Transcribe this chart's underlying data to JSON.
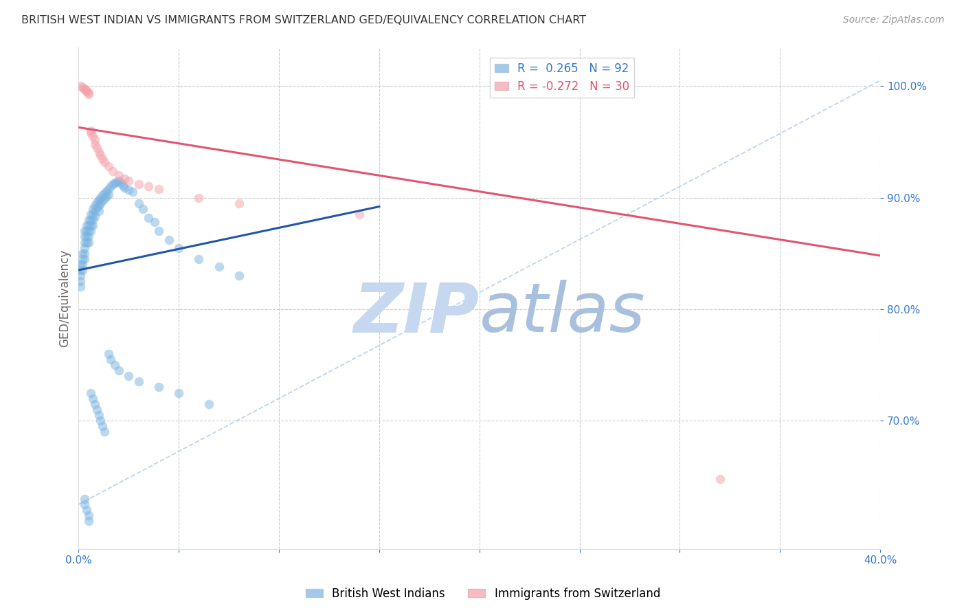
{
  "title": "BRITISH WEST INDIAN VS IMMIGRANTS FROM SWITZERLAND GED/EQUIVALENCY CORRELATION CHART",
  "source": "Source: ZipAtlas.com",
  "ylabel": "GED/Equivalency",
  "xlim": [
    0.0,
    0.4
  ],
  "ylim": [
    0.585,
    1.035
  ],
  "xticks": [
    0.0,
    0.05,
    0.1,
    0.15,
    0.2,
    0.25,
    0.3,
    0.35,
    0.4
  ],
  "xticklabels": [
    "0.0%",
    "",
    "",
    "",
    "",
    "",
    "",
    "",
    "40.0%"
  ],
  "ytick_positions": [
    0.7,
    0.8,
    0.9,
    1.0
  ],
  "yticklabels": [
    "70.0%",
    "80.0%",
    "90.0%",
    "100.0%"
  ],
  "blue_label": "British West Indians",
  "pink_label": "Immigrants from Switzerland",
  "blue_R": 0.265,
  "blue_N": 92,
  "pink_R": -0.272,
  "pink_N": 30,
  "blue_color": "#7ab3e0",
  "pink_color": "#f4a0aa",
  "blue_line_color": "#2255aa",
  "pink_line_color": "#e05570",
  "axis_color": "#3377cc",
  "grid_color": "#cccccc",
  "blue_scatter_x": [
    0.001,
    0.001,
    0.001,
    0.001,
    0.001,
    0.002,
    0.002,
    0.002,
    0.002,
    0.003,
    0.003,
    0.003,
    0.003,
    0.003,
    0.003,
    0.004,
    0.004,
    0.004,
    0.004,
    0.005,
    0.005,
    0.005,
    0.005,
    0.005,
    0.006,
    0.006,
    0.006,
    0.006,
    0.007,
    0.007,
    0.007,
    0.007,
    0.008,
    0.008,
    0.008,
    0.009,
    0.009,
    0.01,
    0.01,
    0.01,
    0.011,
    0.011,
    0.012,
    0.012,
    0.013,
    0.013,
    0.014,
    0.014,
    0.015,
    0.015,
    0.016,
    0.017,
    0.018,
    0.019,
    0.02,
    0.021,
    0.022,
    0.023,
    0.025,
    0.027,
    0.03,
    0.032,
    0.035,
    0.038,
    0.04,
    0.045,
    0.05,
    0.06,
    0.07,
    0.08,
    0.003,
    0.003,
    0.004,
    0.005,
    0.005,
    0.006,
    0.007,
    0.008,
    0.009,
    0.01,
    0.011,
    0.012,
    0.013,
    0.015,
    0.016,
    0.018,
    0.02,
    0.025,
    0.03,
    0.04,
    0.05,
    0.065
  ],
  "blue_scatter_y": [
    0.84,
    0.835,
    0.83,
    0.825,
    0.82,
    0.85,
    0.845,
    0.84,
    0.835,
    0.87,
    0.865,
    0.86,
    0.855,
    0.85,
    0.845,
    0.875,
    0.87,
    0.865,
    0.86,
    0.88,
    0.875,
    0.87,
    0.865,
    0.86,
    0.885,
    0.88,
    0.875,
    0.87,
    0.89,
    0.885,
    0.88,
    0.875,
    0.893,
    0.888,
    0.883,
    0.896,
    0.891,
    0.898,
    0.893,
    0.888,
    0.9,
    0.895,
    0.902,
    0.897,
    0.904,
    0.899,
    0.906,
    0.901,
    0.908,
    0.903,
    0.91,
    0.912,
    0.913,
    0.914,
    0.915,
    0.913,
    0.911,
    0.909,
    0.907,
    0.905,
    0.895,
    0.89,
    0.882,
    0.878,
    0.87,
    0.862,
    0.855,
    0.845,
    0.838,
    0.83,
    0.63,
    0.625,
    0.62,
    0.615,
    0.61,
    0.725,
    0.72,
    0.715,
    0.71,
    0.705,
    0.7,
    0.695,
    0.69,
    0.76,
    0.755,
    0.75,
    0.745,
    0.74,
    0.735,
    0.73,
    0.725,
    0.715
  ],
  "pink_scatter_x": [
    0.001,
    0.002,
    0.003,
    0.003,
    0.004,
    0.004,
    0.005,
    0.005,
    0.006,
    0.006,
    0.007,
    0.008,
    0.008,
    0.009,
    0.01,
    0.011,
    0.012,
    0.013,
    0.015,
    0.017,
    0.02,
    0.023,
    0.025,
    0.03,
    0.035,
    0.04,
    0.06,
    0.08,
    0.14,
    0.32
  ],
  "pink_scatter_y": [
    1.0,
    0.999,
    0.998,
    0.997,
    0.996,
    0.995,
    0.994,
    0.993,
    0.96,
    0.958,
    0.955,
    0.952,
    0.948,
    0.945,
    0.941,
    0.938,
    0.935,
    0.932,
    0.928,
    0.924,
    0.92,
    0.917,
    0.915,
    0.912,
    0.91,
    0.908,
    0.9,
    0.895,
    0.885,
    0.648
  ],
  "blue_trend_x": [
    0.0,
    0.15
  ],
  "blue_trend_y": [
    0.835,
    0.892
  ],
  "pink_trend_x": [
    0.0,
    0.4
  ],
  "pink_trend_y": [
    0.963,
    0.848
  ],
  "ref_line_x": [
    0.0,
    0.4
  ],
  "ref_line_y": [
    0.625,
    1.005
  ]
}
